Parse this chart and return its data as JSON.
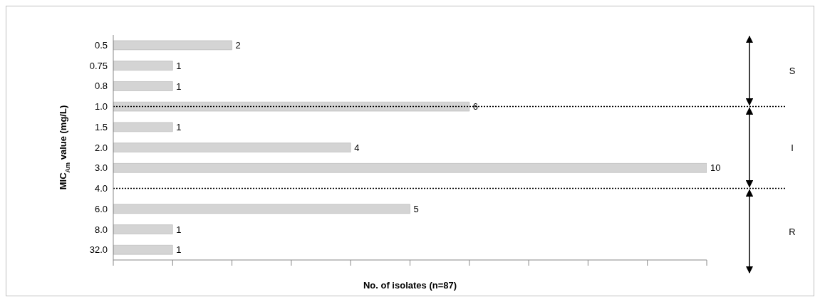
{
  "chart_data": {
    "type": "bar",
    "orientation": "horizontal",
    "xlabel": "No. of isolates (n=87)",
    "ylabel": "MIC$_{Am}$ value (mg/L)",
    "categories": [
      "0.5",
      "0.75",
      "0.8",
      "1.0",
      "1.5",
      "2.0",
      "3.0",
      "4.0",
      "6.0",
      "8.0",
      "32.0"
    ],
    "values": [
      2,
      1,
      1,
      6,
      1,
      4,
      10,
      null,
      5,
      1,
      1
    ],
    "color": "#d4d4d4",
    "data_labels": true,
    "xlim": [
      0,
      10
    ],
    "xticks": [
      {
        "value": 0,
        "label": null
      },
      {
        "value": 1,
        "label": null
      },
      {
        "value": 2,
        "label": null
      },
      {
        "value": 3,
        "label": null
      },
      {
        "value": 4,
        "label": null
      },
      {
        "value": 5,
        "label": null
      },
      {
        "value": 6,
        "label": null
      },
      {
        "value": 7,
        "label": null
      },
      {
        "value": 8,
        "label": null
      },
      {
        "value": 9,
        "label": null
      },
      {
        "value": 10,
        "label": null
      }
    ],
    "ref_lines": [
      {
        "axis": "y",
        "value": "1.0",
        "line_style": "dotted",
        "color": "#000000"
      },
      {
        "axis": "y",
        "value": "4.0",
        "line_style": "dotted",
        "color": "#000000"
      }
    ],
    "annotations": [
      "S",
      "I",
      "R"
    ]
  }
}
